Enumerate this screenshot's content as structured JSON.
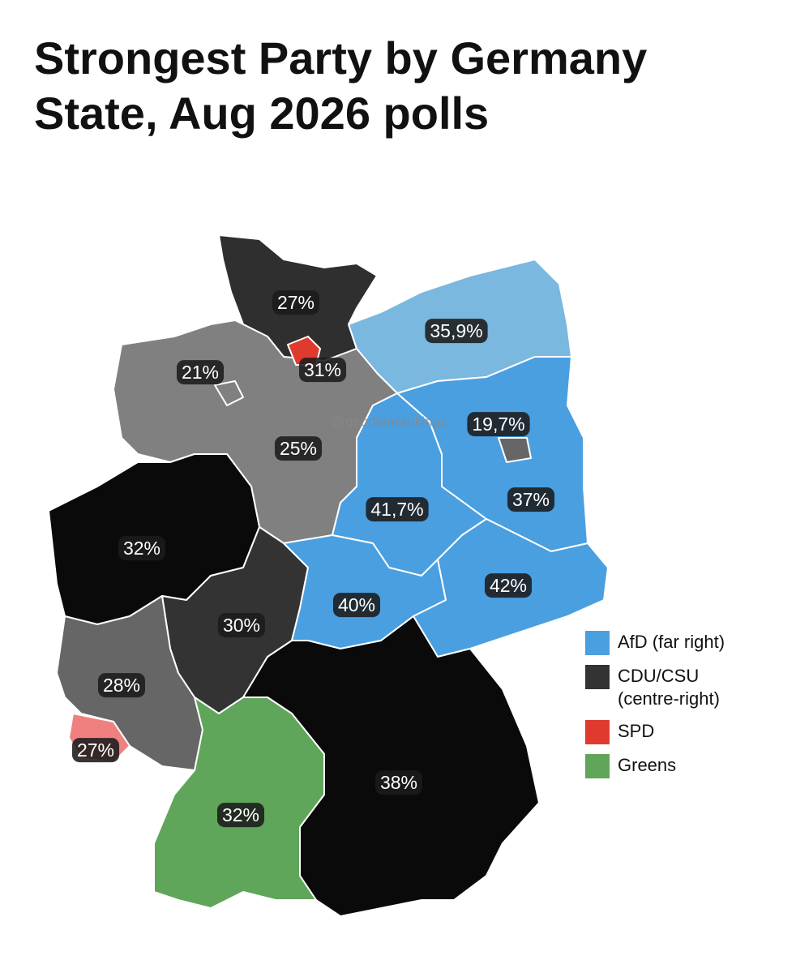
{
  "title": "Strongest Party by Germany State, Aug 2026 polls",
  "watermark": "@geodatarankings",
  "regions": [
    {
      "name": "Schleswig-Holstein",
      "label": "27%",
      "color": "#2f2f2f"
    },
    {
      "name": "Mecklenburg-Vorpommern",
      "label": "35,9%",
      "color": "#7ab8e0"
    },
    {
      "name": "Lower Saxony",
      "label": "25%",
      "color": "#808080"
    },
    {
      "name": "North Rhine-Westphalia",
      "label": "32%",
      "color": "#0a0a0a"
    },
    {
      "name": "Hesse",
      "label": "30%",
      "color": "#333333"
    },
    {
      "name": "Rhineland-Palatinate",
      "label": "28%",
      "color": "#666666"
    },
    {
      "name": "Saarland",
      "label": "27%",
      "color": "#f08080"
    },
    {
      "name": "Saxony-Anhalt",
      "label": "41,7%",
      "color": "#4a9fe0"
    },
    {
      "name": "Brandenburg",
      "label": "37%",
      "color": "#4a9fe0"
    },
    {
      "name": "Berlin",
      "label": "19,7%",
      "color": "#666666"
    },
    {
      "name": "Thuringia",
      "label": "40%",
      "color": "#4a9fe0"
    },
    {
      "name": "Saxony",
      "label": "42%",
      "color": "#4a9fe0"
    },
    {
      "name": "Bavaria",
      "label": "38%",
      "color": "#0a0a0a"
    },
    {
      "name": "Baden-Württemberg",
      "label": "32%",
      "color": "#5fa55a"
    },
    {
      "name": "Hamburg",
      "label": "31%",
      "color": "#e03a2e"
    },
    {
      "name": "Bremen",
      "label": "21%",
      "color": "#808080"
    }
  ],
  "legend": [
    {
      "label": "AfD (far right)",
      "color": "#4a9fe0"
    },
    {
      "label": "CDU/CSU (centre-right)",
      "color": "#333333"
    },
    {
      "label": "SPD",
      "color": "#e03a2e"
    },
    {
      "label": "Greens",
      "color": "#5fa55a"
    }
  ]
}
